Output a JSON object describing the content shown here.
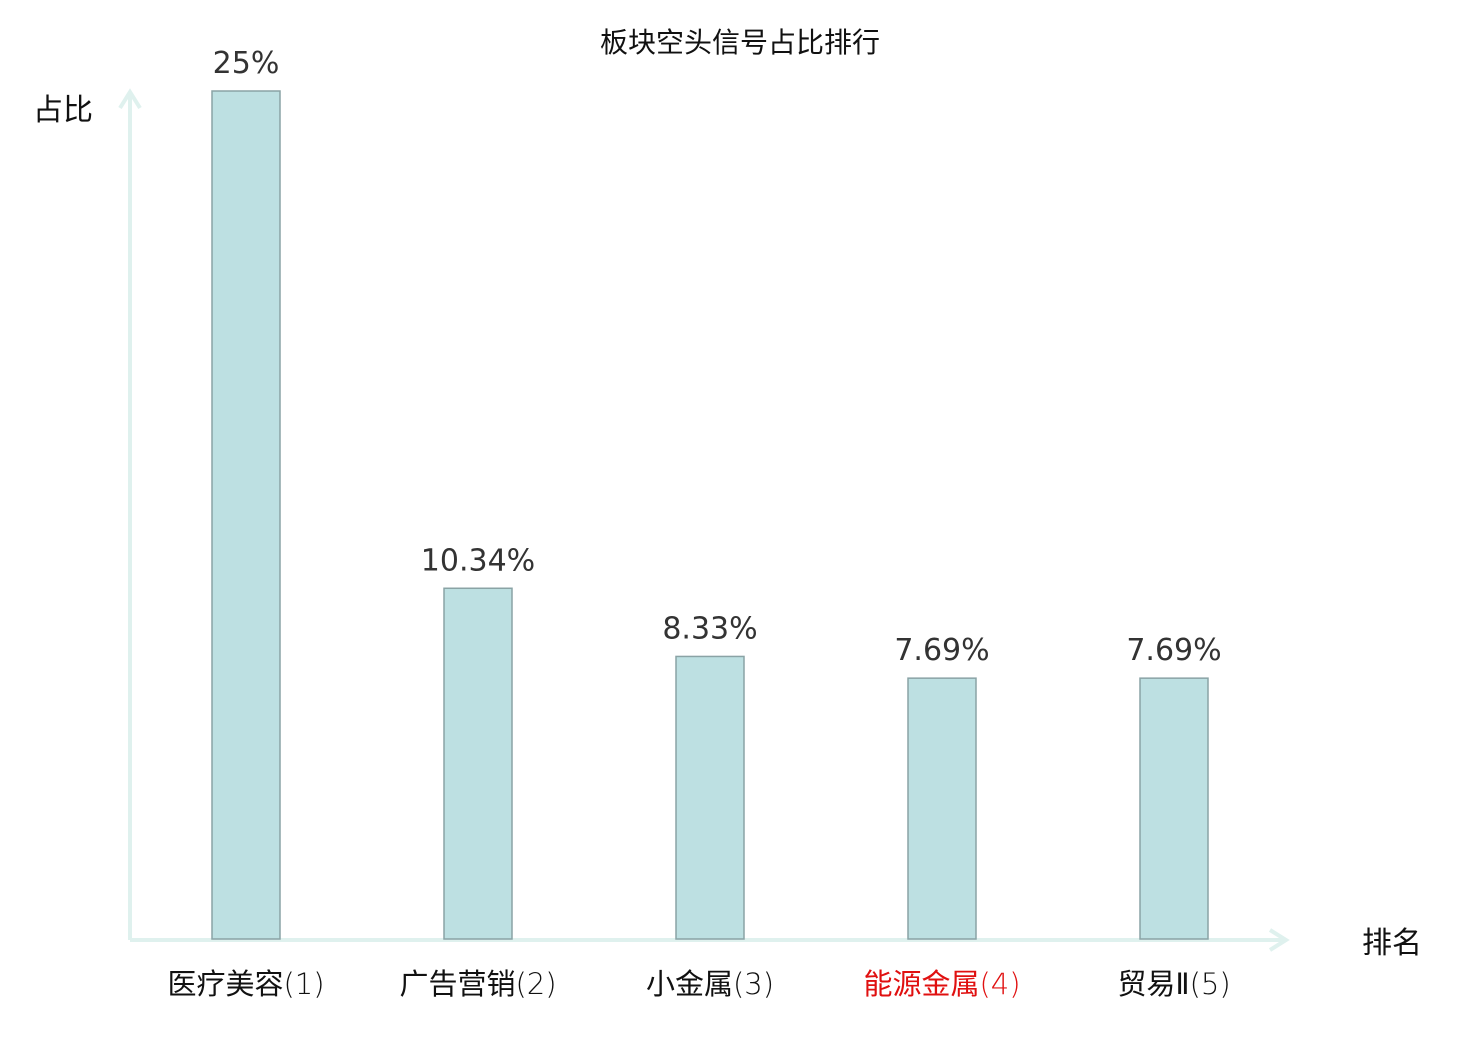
{
  "chart_data": {
    "type": "bar",
    "title": "板块空头信号占比排行",
    "xlabel": "排名",
    "ylabel": "占比",
    "categories": [
      "医疗美容",
      "广告营销",
      "小金属",
      "能源金属",
      "贸易Ⅱ"
    ],
    "ranks": [
      "(1)",
      "(2)",
      "(3)",
      "(4)",
      "(5)"
    ],
    "values": [
      25,
      10.34,
      8.33,
      7.69,
      7.69
    ],
    "value_labels": [
      "25%",
      "10.34%",
      "8.33%",
      "7.69%",
      "7.69%"
    ],
    "highlight_index": 3,
    "ylim": [
      0,
      25
    ],
    "grid": false,
    "legend": "none"
  },
  "colors": {
    "bar_fill": "#bde0e2",
    "bar_stroke": "#8aa3a5",
    "axis": "#dff1ee",
    "text": "#333333",
    "label_text": "#111111",
    "highlight_text": "#e01010"
  }
}
